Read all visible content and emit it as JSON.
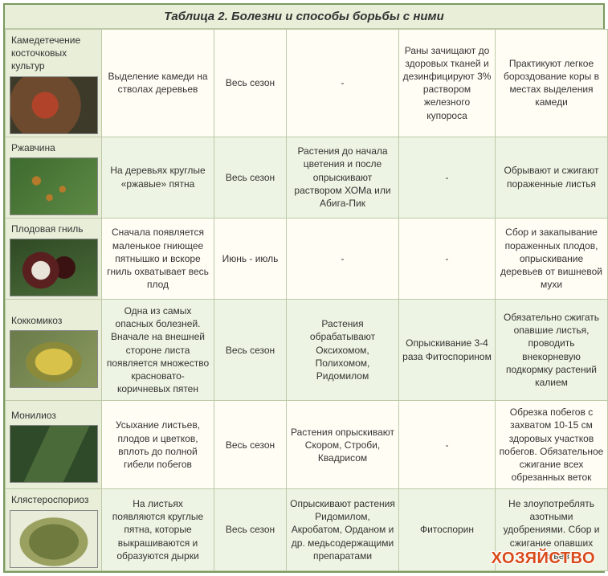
{
  "title": "Таблица 2. Болезни и способы борьбы с ними",
  "watermark": "ХОЗЯЙСТВО",
  "columns": {
    "c0_width": 120,
    "c1_width": 140,
    "c2_width": 90,
    "c3_width": 140,
    "c4_width": 120,
    "c5_width": 140
  },
  "rows": [
    {
      "tint": "a",
      "thumb_class": "th-gum",
      "name": "Камедетечение косточковых культур",
      "desc": "Выделение камеди на стволах деревьев",
      "period": "Весь сезон",
      "chem": "-",
      "bio": "Раны зачищают до здоровых тканей и дезинфицируют 3% раствором железного купороса",
      "agro": "Практикуют легкое бороздование коры в местах выделения камеди"
    },
    {
      "tint": "b",
      "thumb_class": "th-rust",
      "name": "Ржавчина",
      "desc": "На деревьях круглые «ржавые» пятна",
      "period": "Весь сезон",
      "chem": "Растения до начала цветения и после опрыскивают раствором ХОМа или Абига-Пик",
      "bio": "-",
      "agro": "Обрывают и сжигают пораженные листья"
    },
    {
      "tint": "a",
      "thumb_class": "th-rot",
      "name": "Плодовая гниль",
      "desc": "Сначала появляется маленькое гниющее пятнышко и вскоре гниль охватывает весь плод",
      "period": "Июнь - июль",
      "chem": "-",
      "bio": "-",
      "agro": "Сбор и закапывание пораженных плодов, опрыскивание деревьев от вишневой мухи"
    },
    {
      "tint": "b",
      "thumb_class": "th-cocc",
      "name": "Коккомикоз",
      "desc": "Одна из самых опасных болезней. Вначале на внешней стороне листа появляется множество красновато-коричневых пятен",
      "period": "Весь сезон",
      "chem": "Растения обрабатывают Оксихомом, Полихомом, Ридомилом",
      "bio": "Опрыскивание 3-4 раза Фитоспорином",
      "agro": "Обязательно сжигать опавшие листья, проводить внекорневую подкормку растений калием"
    },
    {
      "tint": "a",
      "thumb_class": "th-mon",
      "name": "Монилиоз",
      "desc": "Усыхание листьев, плодов и цветков, вплоть до полной гибели побегов",
      "period": "Весь сезон",
      "chem": "Растения опрыскивают Скором, Строби, Квадрисом",
      "bio": "-",
      "agro": "Обрезка побегов с захватом 10-15 см здоровых участков побегов. Обязательное сжигание всех обрезанных веток"
    },
    {
      "tint": "b",
      "thumb_class": "th-clast",
      "name": "Клястероспориоз",
      "desc": "На листьях появляются круглые пятна, которые выкрашиваются и образуются дырки",
      "period": "Весь сезон",
      "chem": "Опрыскивают растения Ридомилом, Акробатом, Орданом и др. медьсодержащими препаратами",
      "bio": "Фитоспорин",
      "agro": "Не злоупотреблять азотными удобрениями. Сбор и сжигание опавших листьев"
    }
  ]
}
